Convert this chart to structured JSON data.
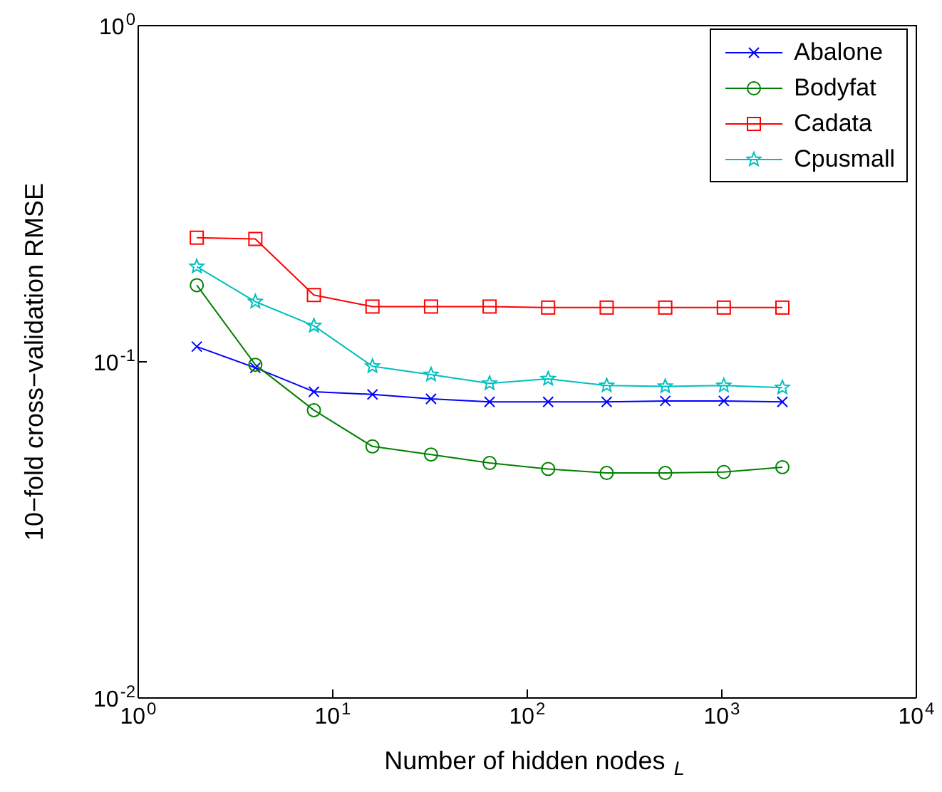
{
  "chart_data": {
    "type": "line",
    "xlabel": "Number of hidden nodes  $_{L}$",
    "ylabel": "10−fold cross−validation RMSE",
    "log": "xy",
    "x": [
      2,
      4,
      8,
      16,
      32,
      64,
      128,
      256,
      512,
      1024,
      2048
    ],
    "xlim": [
      1,
      10000
    ],
    "xticks": [
      {
        "value": 1,
        "label": "10$^{0}$"
      },
      {
        "value": 10,
        "label": "10$^{1}$"
      },
      {
        "value": 100,
        "label": "10$^{2}$"
      },
      {
        "value": 1000,
        "label": "10$^{3}$"
      },
      {
        "value": 10000,
        "label": "10$^{4}$"
      }
    ],
    "ylim": [
      0.01,
      1
    ],
    "yticks": [
      {
        "value": 0.01,
        "label": "10$^{-2}$"
      },
      {
        "value": 0.1,
        "label": "10$^{-1}$"
      },
      {
        "value": 1,
        "label": "10$^{0}$"
      }
    ],
    "grid": false,
    "legend": "top right",
    "line_style": "solid",
    "series": [
      {
        "name": "Abalone",
        "color": "#0000ff",
        "marker": "cross",
        "values": [
          0.111,
          0.096,
          0.0815,
          0.08,
          0.0776,
          0.076,
          0.076,
          0.076,
          0.0765,
          0.0765,
          0.076
        ]
      },
      {
        "name": "Bodyfat",
        "color": "#008000",
        "marker": "circle",
        "values": [
          0.169,
          0.098,
          0.0718,
          0.056,
          0.053,
          0.05,
          0.048,
          0.0467,
          0.0467,
          0.047,
          0.0486
        ]
      },
      {
        "name": "Cadata",
        "color": "#ff0000",
        "marker": "square",
        "values": [
          0.234,
          0.232,
          0.158,
          0.146,
          0.146,
          0.146,
          0.145,
          0.145,
          0.145,
          0.145,
          0.145
        ]
      },
      {
        "name": "Cpusmall",
        "color": "#00bfbf",
        "marker": "star",
        "values": [
          0.192,
          0.151,
          0.128,
          0.097,
          0.0916,
          0.0863,
          0.089,
          0.085,
          0.0845,
          0.085,
          0.0838
        ]
      }
    ]
  }
}
